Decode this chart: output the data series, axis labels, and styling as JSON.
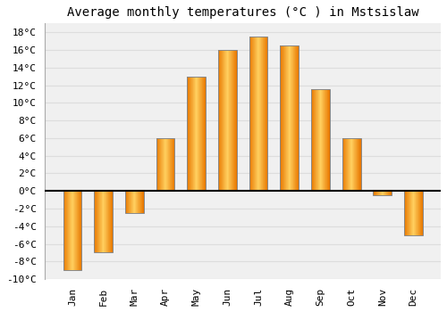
{
  "title": "Average monthly temperatures (°C ) in Mstsislaw",
  "months": [
    "Jan",
    "Feb",
    "Mar",
    "Apr",
    "May",
    "Jun",
    "Jul",
    "Aug",
    "Sep",
    "Oct",
    "Nov",
    "Dec"
  ],
  "values": [
    -9,
    -7,
    -2.5,
    6,
    13,
    16,
    17.5,
    16.5,
    11.5,
    6,
    -0.5,
    -5
  ],
  "bar_color_center": "#FFD060",
  "bar_color_edge": "#E87800",
  "bar_edge_color": "#888888",
  "ylim": [
    -10,
    19
  ],
  "yticks": [
    -10,
    -8,
    -6,
    -4,
    -2,
    0,
    2,
    4,
    6,
    8,
    10,
    12,
    14,
    16,
    18
  ],
  "ytick_labels": [
    "-10°C",
    "-8°C",
    "-6°C",
    "-4°C",
    "-2°C",
    "0°C",
    "2°C",
    "4°C",
    "6°C",
    "8°C",
    "10°C",
    "12°C",
    "14°C",
    "16°C",
    "18°C"
  ],
  "background_color": "#ffffff",
  "plot_bg_color": "#f0f0f0",
  "grid_color": "#dddddd",
  "zero_line_color": "#000000",
  "title_fontsize": 10,
  "tick_fontsize": 8
}
